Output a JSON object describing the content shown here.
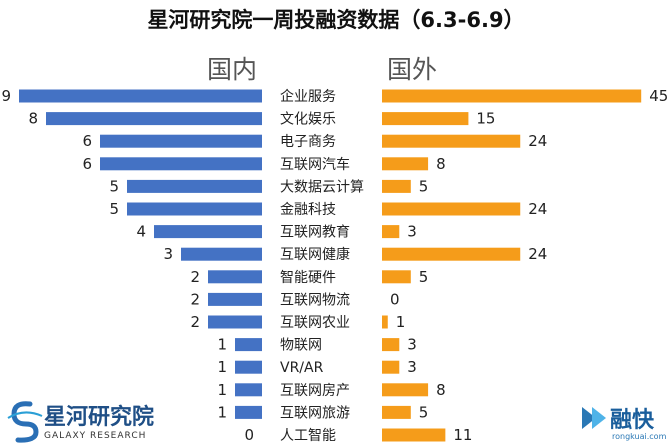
{
  "chart_data": {
    "type": "bar",
    "title": "星河研究院一周投融资数据（6.3-6.9）",
    "left_label": "国内",
    "right_label": "国外",
    "categories": [
      "企业服务",
      "文化娱乐",
      "电子商务",
      "互联网汽车",
      "大数据云计算",
      "金融科技",
      "互联网教育",
      "互联网健康",
      "智能硬件",
      "互联网物流",
      "互联网农业",
      "物联网",
      "VR/AR",
      "互联网房产",
      "互联网旅游",
      "人工智能"
    ],
    "series": [
      {
        "name": "国内",
        "color": "#4472c4",
        "values": [
          9,
          8,
          6,
          6,
          5,
          5,
          4,
          3,
          2,
          2,
          2,
          1,
          1,
          1,
          1,
          0
        ]
      },
      {
        "name": "国外",
        "color": "#f59c1a",
        "values": [
          45,
          15,
          24,
          8,
          5,
          24,
          3,
          24,
          5,
          0,
          1,
          3,
          3,
          8,
          5,
          11
        ]
      }
    ]
  },
  "branding": {
    "left_logo_cn": "星河研究院",
    "left_logo_en": "GALAXY RESEARCH",
    "right_logo_cn": "融快",
    "right_logo_url": "rongkuai.com"
  }
}
